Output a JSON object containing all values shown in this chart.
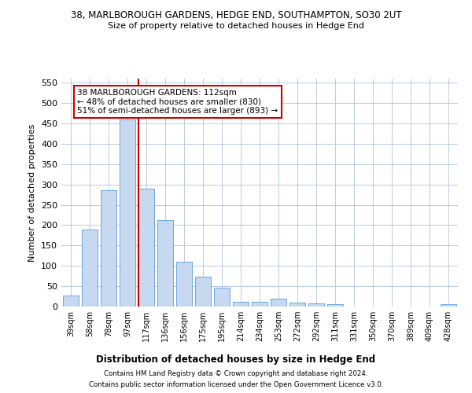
{
  "title": "38, MARLBOROUGH GARDENS, HEDGE END, SOUTHAMPTON, SO30 2UT",
  "subtitle": "Size of property relative to detached houses in Hedge End",
  "xlabel": "Distribution of detached houses by size in Hedge End",
  "ylabel": "Number of detached properties",
  "categories": [
    "39sqm",
    "58sqm",
    "78sqm",
    "97sqm",
    "117sqm",
    "136sqm",
    "156sqm",
    "175sqm",
    "195sqm",
    "214sqm",
    "234sqm",
    "253sqm",
    "272sqm",
    "292sqm",
    "311sqm",
    "331sqm",
    "350sqm",
    "370sqm",
    "389sqm",
    "409sqm",
    "428sqm"
  ],
  "values": [
    28,
    190,
    285,
    460,
    290,
    212,
    110,
    73,
    46,
    12,
    12,
    20,
    10,
    7,
    5,
    0,
    0,
    0,
    0,
    0,
    5
  ],
  "bar_color": "#c6d9f0",
  "bar_edge_color": "#5b9bd5",
  "marker_bar_index": 4,
  "marker_line_color": "#cc0000",
  "ylim": [
    0,
    560
  ],
  "yticks": [
    0,
    50,
    100,
    150,
    200,
    250,
    300,
    350,
    400,
    450,
    500,
    550
  ],
  "annotation_text": "38 MARLBOROUGH GARDENS: 112sqm\n← 48% of detached houses are smaller (830)\n51% of semi-detached houses are larger (893) →",
  "annotation_box_color": "#ffffff",
  "annotation_box_edge": "#cc0000",
  "footer_line1": "Contains HM Land Registry data © Crown copyright and database right 2024.",
  "footer_line2": "Contains public sector information licensed under the Open Government Licence v3.0.",
  "bg_color": "#ffffff",
  "grid_color": "#b8cce4"
}
